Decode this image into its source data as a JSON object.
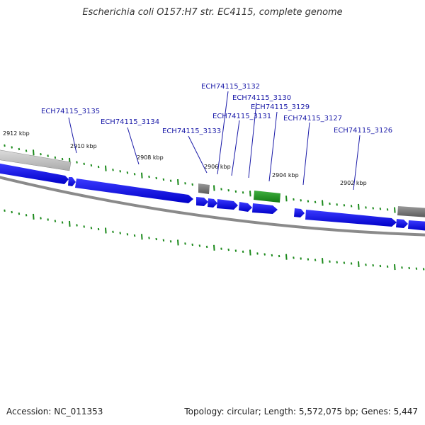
{
  "title": "Escherichia coli O157:H7 str. EC4115, complete genome",
  "footer": {
    "accession": "Accession: NC_011353",
    "stats": "Topology: circular; Length: 5,572,075 bp; Genes: 5,447"
  },
  "colors": {
    "cds": "#0000ee",
    "rna": "#1e8c1e",
    "other_gene": "#707070",
    "backbone": "#8a8a8a",
    "ticks": "#1c8a1c",
    "label": "#1a1aa8"
  },
  "scale_labels": [
    "2912 kbp",
    "2910 kbp",
    "2908 kbp",
    "2906 kbp",
    "2904 kbp",
    "2902 kbp"
  ],
  "gene_labels": [
    "ECH74115_3135",
    "ECH74115_3134",
    "ECH74115_3133",
    "ECH74115_3132",
    "ECH74115_3131",
    "ECH74115_3130",
    "ECH74115_3129",
    "ECH74115_3127",
    "ECH74115_3126"
  ]
}
